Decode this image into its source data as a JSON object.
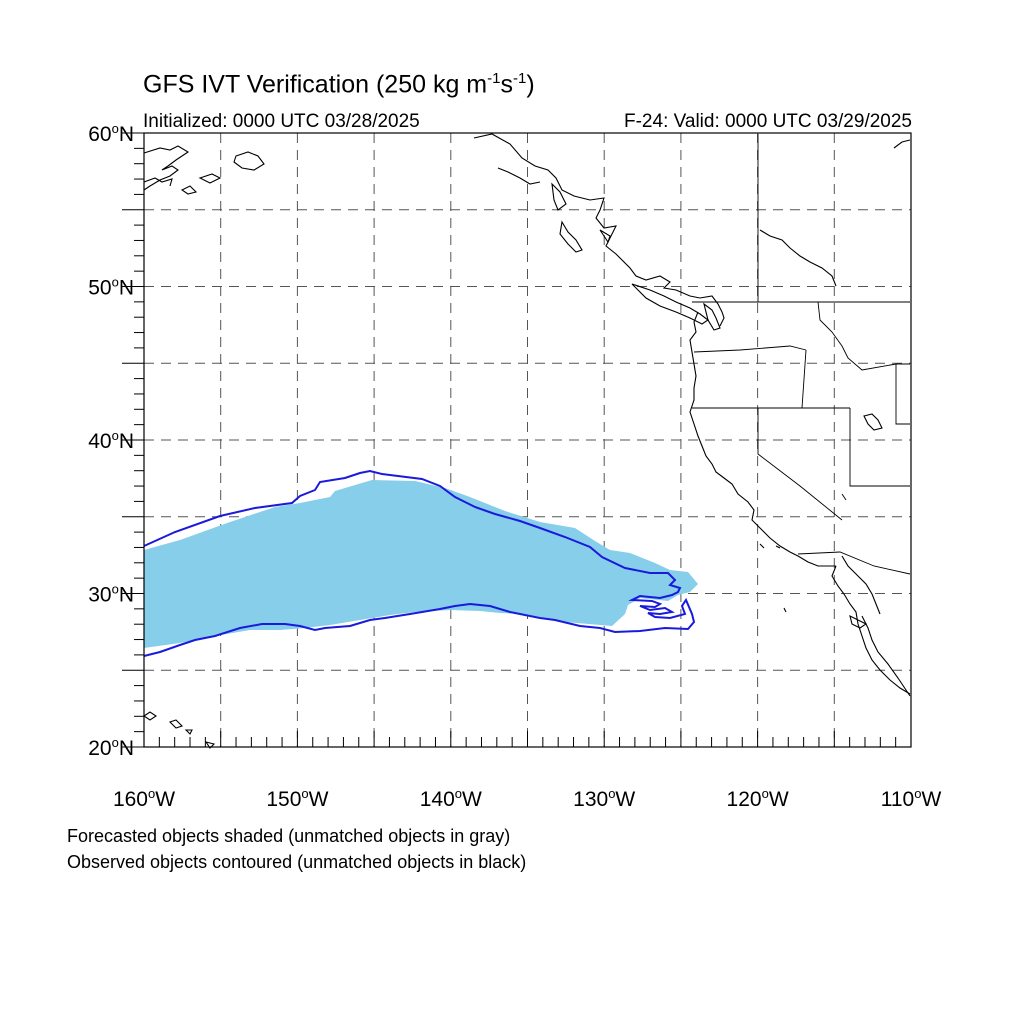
{
  "title": {
    "prefix": "GFS IVT Verification (250 kg m",
    "sup1": "-1",
    "mid": "s",
    "sup2": "-1",
    "suffix": ")"
  },
  "initialized": "Initialized: 0000 UTC 03/28/2025",
  "valid": "F-24: Valid: 0000 UTC 03/29/2025",
  "captions": [
    "Forecasted objects shaded (unmatched objects in gray)",
    "Observed objects contoured (unmatched objects in black)"
  ],
  "map": {
    "lat_range": [
      20,
      60
    ],
    "lon_range": [
      -160,
      -110
    ],
    "lat_ticks": [
      {
        "value": 60,
        "label": "60",
        "suffix": "N"
      },
      {
        "value": 50,
        "label": "50",
        "suffix": "N"
      },
      {
        "value": 40,
        "label": "40",
        "suffix": "N"
      },
      {
        "value": 30,
        "label": "30",
        "suffix": "N"
      },
      {
        "value": 20,
        "label": "20",
        "suffix": "N"
      }
    ],
    "lon_ticks": [
      {
        "value": -160,
        "label": "160",
        "suffix": "W"
      },
      {
        "value": -150,
        "label": "150",
        "suffix": "W"
      },
      {
        "value": -140,
        "label": "140",
        "suffix": "W"
      },
      {
        "value": -130,
        "label": "130",
        "suffix": "W"
      },
      {
        "value": -120,
        "label": "120",
        "suffix": "W"
      },
      {
        "value": -110,
        "label": "110",
        "suffix": "W"
      }
    ],
    "grid_interval_deg": 5,
    "grid": "dashed",
    "colors": {
      "forecast_fill": "#87ceeb",
      "observed_contour": "#1a1adc",
      "coastline": "#000000"
    }
  }
}
